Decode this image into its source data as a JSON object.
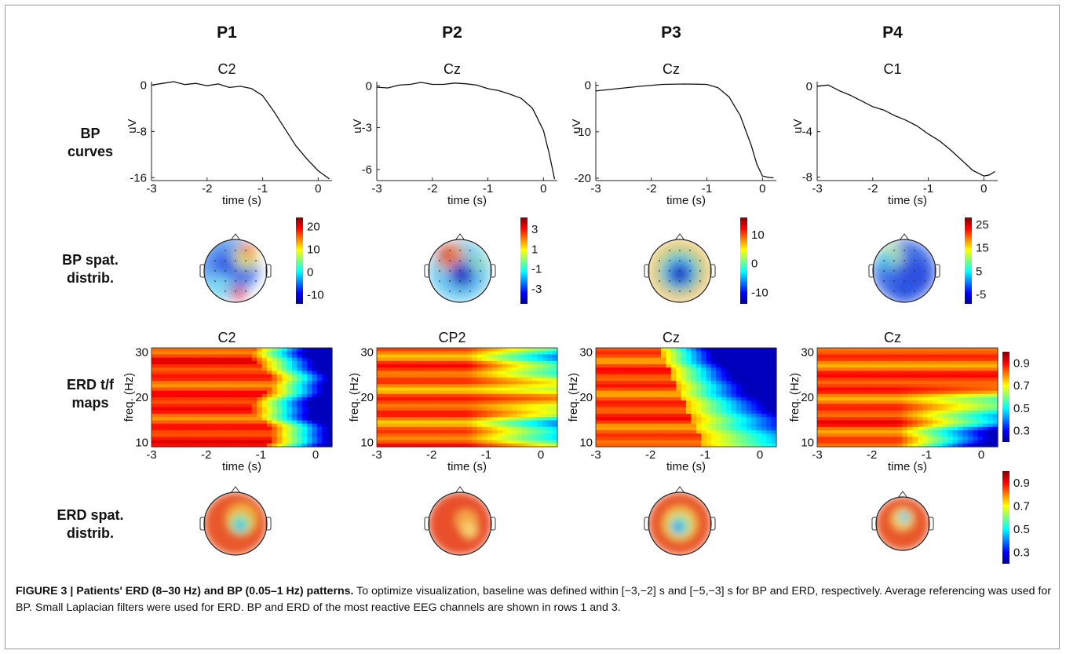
{
  "patients": [
    "P1",
    "P2",
    "P3",
    "P4"
  ],
  "row_labels": [
    {
      "l1": "BP",
      "l2": "curves"
    },
    {
      "l1": "BP spat.",
      "l2": "distrib."
    },
    {
      "l1": "ERD t/f",
      "l2": "maps"
    },
    {
      "l1": "ERD spat.",
      "l2": "distrib."
    }
  ],
  "bp_channels": [
    "C2",
    "Cz",
    "Cz",
    "C1"
  ],
  "erd_channels": [
    "C2",
    "CP2",
    "Cz",
    "Cz"
  ],
  "bp_ylabel": "uV",
  "erd_ylabel": "freq. (Hz)",
  "xlabel": "time (s)",
  "chart_data": [
    {
      "type": "line",
      "panel": "P1 BP curve",
      "channel": "C2",
      "xlabel": "time (s)",
      "ylabel": "uV",
      "xlim": [
        -3,
        0.25
      ],
      "ylim": [
        -16.5,
        0.6
      ],
      "xticks": [
        -3,
        -2,
        -1,
        0
      ],
      "yticks": [
        0,
        -8,
        -16
      ],
      "x": [
        -3,
        -2.8,
        -2.6,
        -2.4,
        -2.2,
        -2.0,
        -1.8,
        -1.6,
        -1.4,
        -1.2,
        -1.0,
        -0.8,
        -0.6,
        -0.4,
        -0.2,
        0.0,
        0.2
      ],
      "y": [
        0,
        0.3,
        0.6,
        0.1,
        0.3,
        -0.1,
        0.2,
        -0.4,
        -0.2,
        -0.6,
        -1.8,
        -4.5,
        -7.5,
        -10.5,
        -12.8,
        -14.8,
        -16.2
      ]
    },
    {
      "type": "line",
      "panel": "P2 BP curve",
      "channel": "Cz",
      "xlabel": "time (s)",
      "ylabel": "uV",
      "xlim": [
        -3,
        0.25
      ],
      "ylim": [
        -6.8,
        0.3
      ],
      "xticks": [
        -3,
        -2,
        -1,
        0
      ],
      "yticks": [
        0,
        -3,
        -6
      ],
      "x": [
        -3,
        -2.8,
        -2.6,
        -2.4,
        -2.2,
        -2.0,
        -1.8,
        -1.6,
        -1.4,
        -1.2,
        -1.0,
        -0.8,
        -0.6,
        -0.4,
        -0.2,
        0.0,
        0.1,
        0.2
      ],
      "y": [
        -0.1,
        -0.15,
        0.05,
        0.1,
        0.25,
        0.1,
        0.1,
        0.2,
        0.15,
        0.05,
        -0.2,
        -0.35,
        -0.6,
        -0.9,
        -1.6,
        -3.2,
        -4.8,
        -6.7
      ]
    },
    {
      "type": "line",
      "panel": "P3 BP curve",
      "channel": "Cz",
      "xlabel": "time (s)",
      "ylabel": "uV",
      "xlim": [
        -3,
        0.25
      ],
      "ylim": [
        -20.5,
        0.8
      ],
      "xticks": [
        -3,
        -2,
        -1,
        0
      ],
      "yticks": [
        0,
        -10,
        -20
      ],
      "x": [
        -3,
        -2.6,
        -2.2,
        -1.8,
        -1.4,
        -1.0,
        -0.8,
        -0.6,
        -0.4,
        -0.2,
        -0.1,
        0.0,
        0.1,
        0.2
      ],
      "y": [
        -1.2,
        -0.7,
        -0.2,
        0.2,
        0.3,
        0.2,
        -0.5,
        -2.5,
        -6.5,
        -13,
        -17,
        -19.5,
        -19.8,
        -19.9
      ]
    },
    {
      "type": "line",
      "panel": "P4 BP curve",
      "channel": "C1",
      "xlabel": "time (s)",
      "ylabel": "uV",
      "xlim": [
        -3,
        0.25
      ],
      "ylim": [
        -8.3,
        0.4
      ],
      "xticks": [
        -3,
        -2,
        -1,
        0
      ],
      "yticks": [
        0,
        -4,
        -8
      ],
      "x": [
        -3,
        -2.8,
        -2.6,
        -2.4,
        -2.2,
        -2.0,
        -1.8,
        -1.6,
        -1.4,
        -1.2,
        -1.0,
        -0.8,
        -0.6,
        -0.4,
        -0.2,
        0.0,
        0.1,
        0.2
      ],
      "y": [
        0,
        0.1,
        -0.4,
        -0.8,
        -1.3,
        -1.8,
        -2.1,
        -2.6,
        -3.0,
        -3.5,
        -4.2,
        -4.8,
        -5.6,
        -6.5,
        -7.4,
        -7.9,
        -7.8,
        -7.5
      ]
    },
    {
      "type": "heatmap",
      "panel": "BP spatial distribution colorbars",
      "colorbars": [
        {
          "ticks": [
            20,
            10,
            0,
            -10
          ],
          "range": [
            -14,
            24
          ]
        },
        {
          "ticks": [
            3,
            1,
            -1,
            -3
          ],
          "range": [
            -4.5,
            4.2
          ]
        },
        {
          "ticks": [
            10,
            0,
            -10
          ],
          "range": [
            -14,
            16
          ]
        },
        {
          "ticks": [
            25,
            15,
            5,
            -5
          ],
          "range": [
            -9,
            28
          ]
        }
      ]
    },
    {
      "type": "heatmap",
      "panel": "ERD t/f maps",
      "xlabel": "time (s)",
      "ylabel": "freq. (Hz)",
      "xticks": [
        -3,
        -2,
        -1,
        0
      ],
      "yticks": [
        30,
        20,
        10
      ],
      "xlim": [
        -3,
        0.3
      ],
      "ylim": [
        9,
        31
      ],
      "colorbar": {
        "ticks": [
          0.9,
          0.7,
          0.5,
          0.3
        ],
        "range": [
          0.2,
          1.0
        ]
      }
    },
    {
      "type": "heatmap",
      "panel": "ERD spatial distribution colorbar",
      "colorbar": {
        "ticks": [
          0.9,
          0.7,
          0.5,
          0.3
        ],
        "range": [
          0.2,
          1.0
        ]
      }
    }
  ],
  "caption": {
    "bold": "FIGURE 3 | Patients' ERD (8–30 Hz) and BP (0.05–1 Hz) patterns.",
    "rest": " To optimize visualization, baseline was defined within [−3,−2] s and [−5,−3] s for BP and ERD, respectively. Average referencing was used for BP. Small Laplacian filters were used for ERD. BP and ERD of the most reactive EEG channels are shown in rows 1 and 3."
  }
}
